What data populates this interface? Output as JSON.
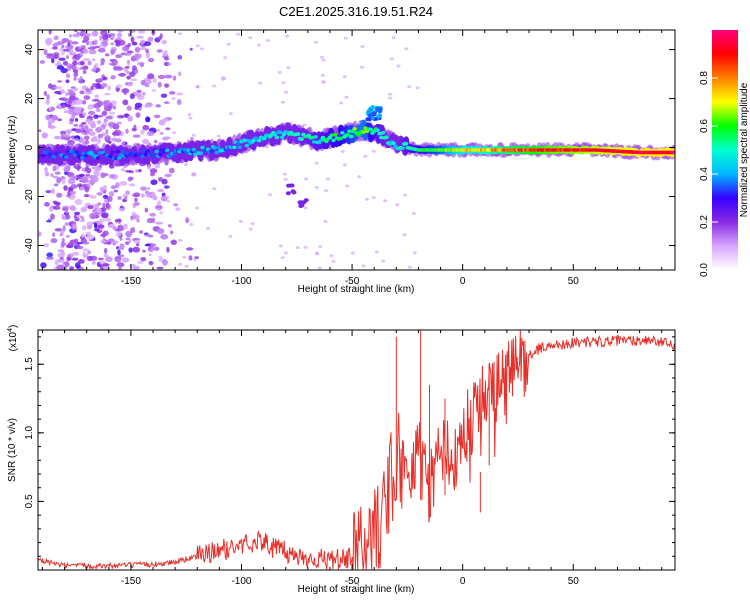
{
  "title": "C2E1.2025.316.19.51.R24",
  "chart_data": [
    {
      "type": "heatmap",
      "name": "spectrogram",
      "xlabel": "Height of straight line (km)",
      "ylabel": "Frequency (Hz)",
      "xlim": [
        -192,
        96
      ],
      "ylim": [
        -50,
        48
      ],
      "xticks": [
        -150,
        -100,
        -50,
        0,
        50
      ],
      "yticks": [
        -40,
        -20,
        0,
        20,
        40
      ],
      "colorbar": {
        "label": "Normalized spectral amplitude",
        "range": [
          0,
          1
        ],
        "ticks": [
          0.0,
          0.2,
          0.4,
          0.6,
          0.8
        ],
        "tick_labels": [
          "0.0",
          "0.2",
          "0.4",
          "0.6",
          "0.8"
        ],
        "colors": [
          "#ffffff",
          "#d7a6ff",
          "#8a2be2",
          "#3300ff",
          "#00b7ff",
          "#00ffd0",
          "#00ff00",
          "#ffff00",
          "#ff8000",
          "#ff0000",
          "#ff0080"
        ]
      },
      "ridge": [
        {
          "x": -190,
          "y": -3,
          "a": 0.3
        },
        {
          "x": -170,
          "y": -3,
          "a": 0.35
        },
        {
          "x": -150,
          "y": -3,
          "a": 0.32
        },
        {
          "x": -130,
          "y": -2,
          "a": 0.38
        },
        {
          "x": -110,
          "y": -1,
          "a": 0.4
        },
        {
          "x": -95,
          "y": 3,
          "a": 0.45
        },
        {
          "x": -80,
          "y": 6,
          "a": 0.45
        },
        {
          "x": -65,
          "y": 3,
          "a": 0.5
        },
        {
          "x": -55,
          "y": 5,
          "a": 0.55
        },
        {
          "x": -45,
          "y": 7,
          "a": 0.62
        },
        {
          "x": -38,
          "y": 6,
          "a": 0.5
        },
        {
          "x": -30,
          "y": 1,
          "a": 0.45
        },
        {
          "x": -20,
          "y": -1,
          "a": 0.55
        },
        {
          "x": -10,
          "y": -1,
          "a": 0.6
        },
        {
          "x": 0,
          "y": -1,
          "a": 0.72
        },
        {
          "x": 10,
          "y": -1,
          "a": 0.75
        },
        {
          "x": 20,
          "y": -1,
          "a": 0.8
        },
        {
          "x": 40,
          "y": -1,
          "a": 0.88
        },
        {
          "x": 60,
          "y": -1,
          "a": 0.92
        },
        {
          "x": 80,
          "y": -2,
          "a": 0.95
        },
        {
          "x": 96,
          "y": -2,
          "a": 0.96
        }
      ],
      "side_streak": [
        {
          "x": -78,
          "y": -17
        },
        {
          "x": -72,
          "y": -22
        }
      ],
      "upper_blob": {
        "x": -40,
        "y": 14
      }
    },
    {
      "type": "line",
      "name": "snr",
      "xlabel": "Height of straight line (km)",
      "ylabel": "SNR (10 * v/v)",
      "scale_label": "(x10",
      "scale_exp": "4",
      "scale_close": ")",
      "xlim": [
        -192,
        96
      ],
      "ylim": [
        0.0,
        1.75
      ],
      "xticks": [
        -150,
        -100,
        -50,
        0,
        50
      ],
      "yticks": [
        0.5,
        1.0,
        1.5
      ],
      "ytick_labels": [
        "0.5",
        "1.0",
        "1.5"
      ],
      "color": "#e8302a",
      "series": [
        {
          "x": -192,
          "y": 0.07
        },
        {
          "x": -180,
          "y": 0.03
        },
        {
          "x": -160,
          "y": 0.03
        },
        {
          "x": -140,
          "y": 0.04
        },
        {
          "x": -130,
          "y": 0.06
        },
        {
          "x": -120,
          "y": 0.1
        },
        {
          "x": -110,
          "y": 0.14
        },
        {
          "x": -100,
          "y": 0.18
        },
        {
          "x": -92,
          "y": 0.22
        },
        {
          "x": -85,
          "y": 0.16
        },
        {
          "x": -75,
          "y": 0.1
        },
        {
          "x": -60,
          "y": 0.07
        },
        {
          "x": -50,
          "y": 0.08
        },
        {
          "x": -42,
          "y": 0.18
        },
        {
          "x": -35,
          "y": 0.45
        },
        {
          "x": -30,
          "y": 0.85
        },
        {
          "x": -25,
          "y": 0.7
        },
        {
          "x": -20,
          "y": 0.9
        },
        {
          "x": -15,
          "y": 0.65
        },
        {
          "x": -10,
          "y": 0.95
        },
        {
          "x": -5,
          "y": 0.85
        },
        {
          "x": 0,
          "y": 1.05
        },
        {
          "x": 5,
          "y": 1.1
        },
        {
          "x": 10,
          "y": 1.25
        },
        {
          "x": 15,
          "y": 1.3
        },
        {
          "x": 20,
          "y": 1.38
        },
        {
          "x": 25,
          "y": 1.5
        },
        {
          "x": 35,
          "y": 1.62
        },
        {
          "x": 50,
          "y": 1.66
        },
        {
          "x": 70,
          "y": 1.67
        },
        {
          "x": 85,
          "y": 1.68
        },
        {
          "x": 96,
          "y": 1.63
        }
      ],
      "spikes": [
        {
          "x": -30,
          "y": 1.7
        },
        {
          "x": -19,
          "y": 1.75
        },
        {
          "x": -15,
          "y": 1.35
        },
        {
          "x": -8,
          "y": 1.25
        },
        {
          "x": 8,
          "y": 0.42
        },
        {
          "x": 12,
          "y": 1.5
        }
      ]
    }
  ]
}
